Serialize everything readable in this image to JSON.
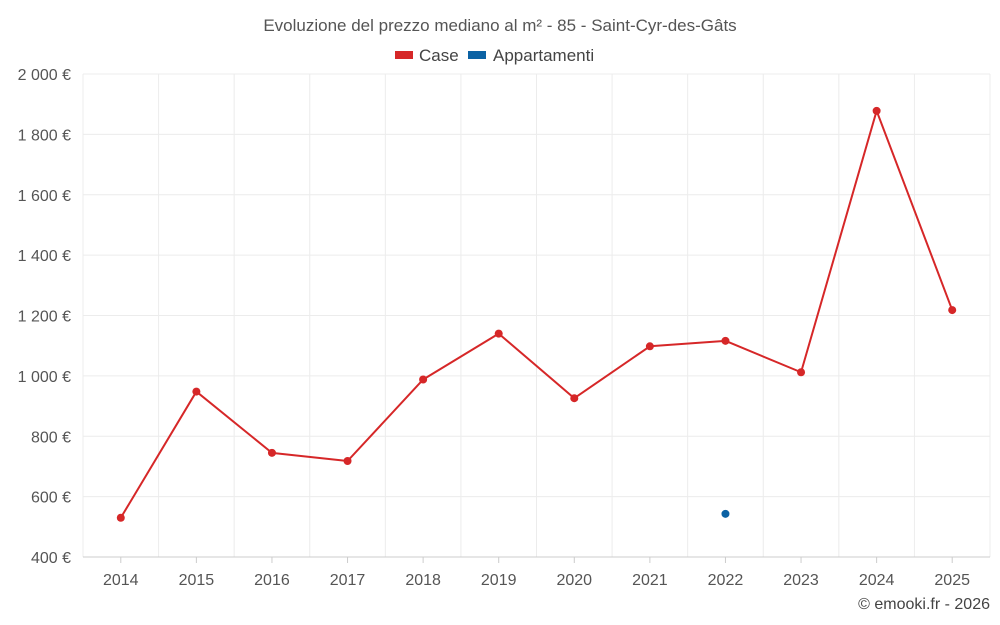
{
  "chart_data": {
    "type": "line",
    "title": "Evoluzione del prezzo mediano al m² - 85 - Saint-Cyr-des-Gâts",
    "x": [
      "2014",
      "2015",
      "2016",
      "2017",
      "2018",
      "2019",
      "2020",
      "2021",
      "2022",
      "2023",
      "2024",
      "2025"
    ],
    "y_ticks": [
      {
        "value": 400,
        "label": "400 €"
      },
      {
        "value": 600,
        "label": "600 €"
      },
      {
        "value": 800,
        "label": "800 €"
      },
      {
        "value": 1000,
        "label": "1 000 €"
      },
      {
        "value": 1200,
        "label": "1 200 €"
      },
      {
        "value": 1400,
        "label": "1 400 €"
      },
      {
        "value": 1600,
        "label": "1 600 €"
      },
      {
        "value": 1800,
        "label": "1 800 €"
      },
      {
        "value": 2000,
        "label": "2 000 €"
      }
    ],
    "ylim": [
      400,
      2000
    ],
    "xlabel": "",
    "ylabel": "",
    "grid": true,
    "legend_position": "top-center",
    "series": [
      {
        "name": "Case",
        "color": "#d62728",
        "values": [
          530,
          948,
          745,
          718,
          988,
          1140,
          926,
          1098,
          1116,
          1012,
          1878,
          1218
        ]
      },
      {
        "name": "Appartamenti",
        "color": "#0b62a4",
        "values": [
          null,
          null,
          null,
          null,
          null,
          null,
          null,
          null,
          543,
          null,
          null,
          null
        ]
      }
    ]
  },
  "credit": "© emooki.fr - 2026"
}
